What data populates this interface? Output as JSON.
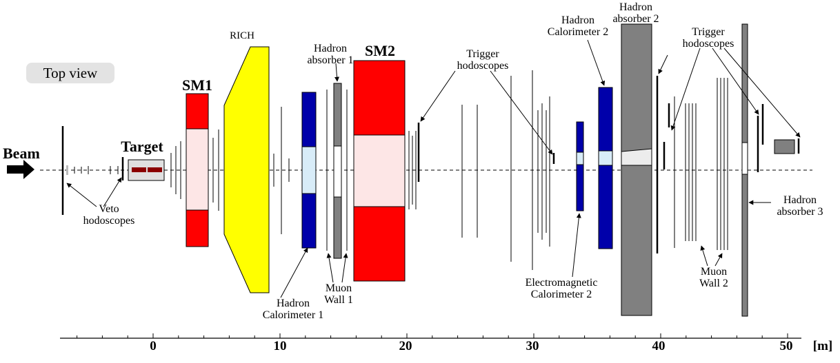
{
  "view_label": "Top view",
  "beam_label": "Beam",
  "target_label": "Target",
  "sm1_label": "SM1",
  "sm2_label": "SM2",
  "rich_label": "RICH",
  "veto_label": [
    "Veto",
    "hodoscopes"
  ],
  "hadron_absorber_1": [
    "Hadron",
    "absorber 1"
  ],
  "hadron_absorber_2": [
    "Hadron",
    "absorber 2"
  ],
  "hadron_absorber_3": [
    "Hadron",
    "absorber 3"
  ],
  "hadron_calorimeter_1": [
    "Hadron",
    "Calorimeter 1"
  ],
  "hadron_calorimeter_2": [
    "Hadron",
    "Calorimeter 2"
  ],
  "muon_wall_1": [
    "Muon",
    "Wall 1"
  ],
  "muon_wall_2": [
    "Muon",
    "Wall 2"
  ],
  "trigger_hodoscopes_a": [
    "Trigger",
    "hodoscopes"
  ],
  "trigger_hodoscopes_b": [
    "Trigger",
    "hodoscopes"
  ],
  "ecal_2": [
    "Electromagnetic",
    "Calorimeter 2"
  ],
  "axis": {
    "ticks": [
      "0",
      "10",
      "20",
      "30",
      "40",
      "50"
    ],
    "unit": "[m]"
  },
  "colors": {
    "magnet": "#ff0000",
    "magnet_gap": "#fde6e6",
    "rich": "#ffff00",
    "calorimeter": "#0000aa",
    "calorimeter_gap": "#d8ecf8",
    "absorber": "#808080",
    "target_box": "#e0e0e0",
    "target_cells": "#8b0000"
  }
}
